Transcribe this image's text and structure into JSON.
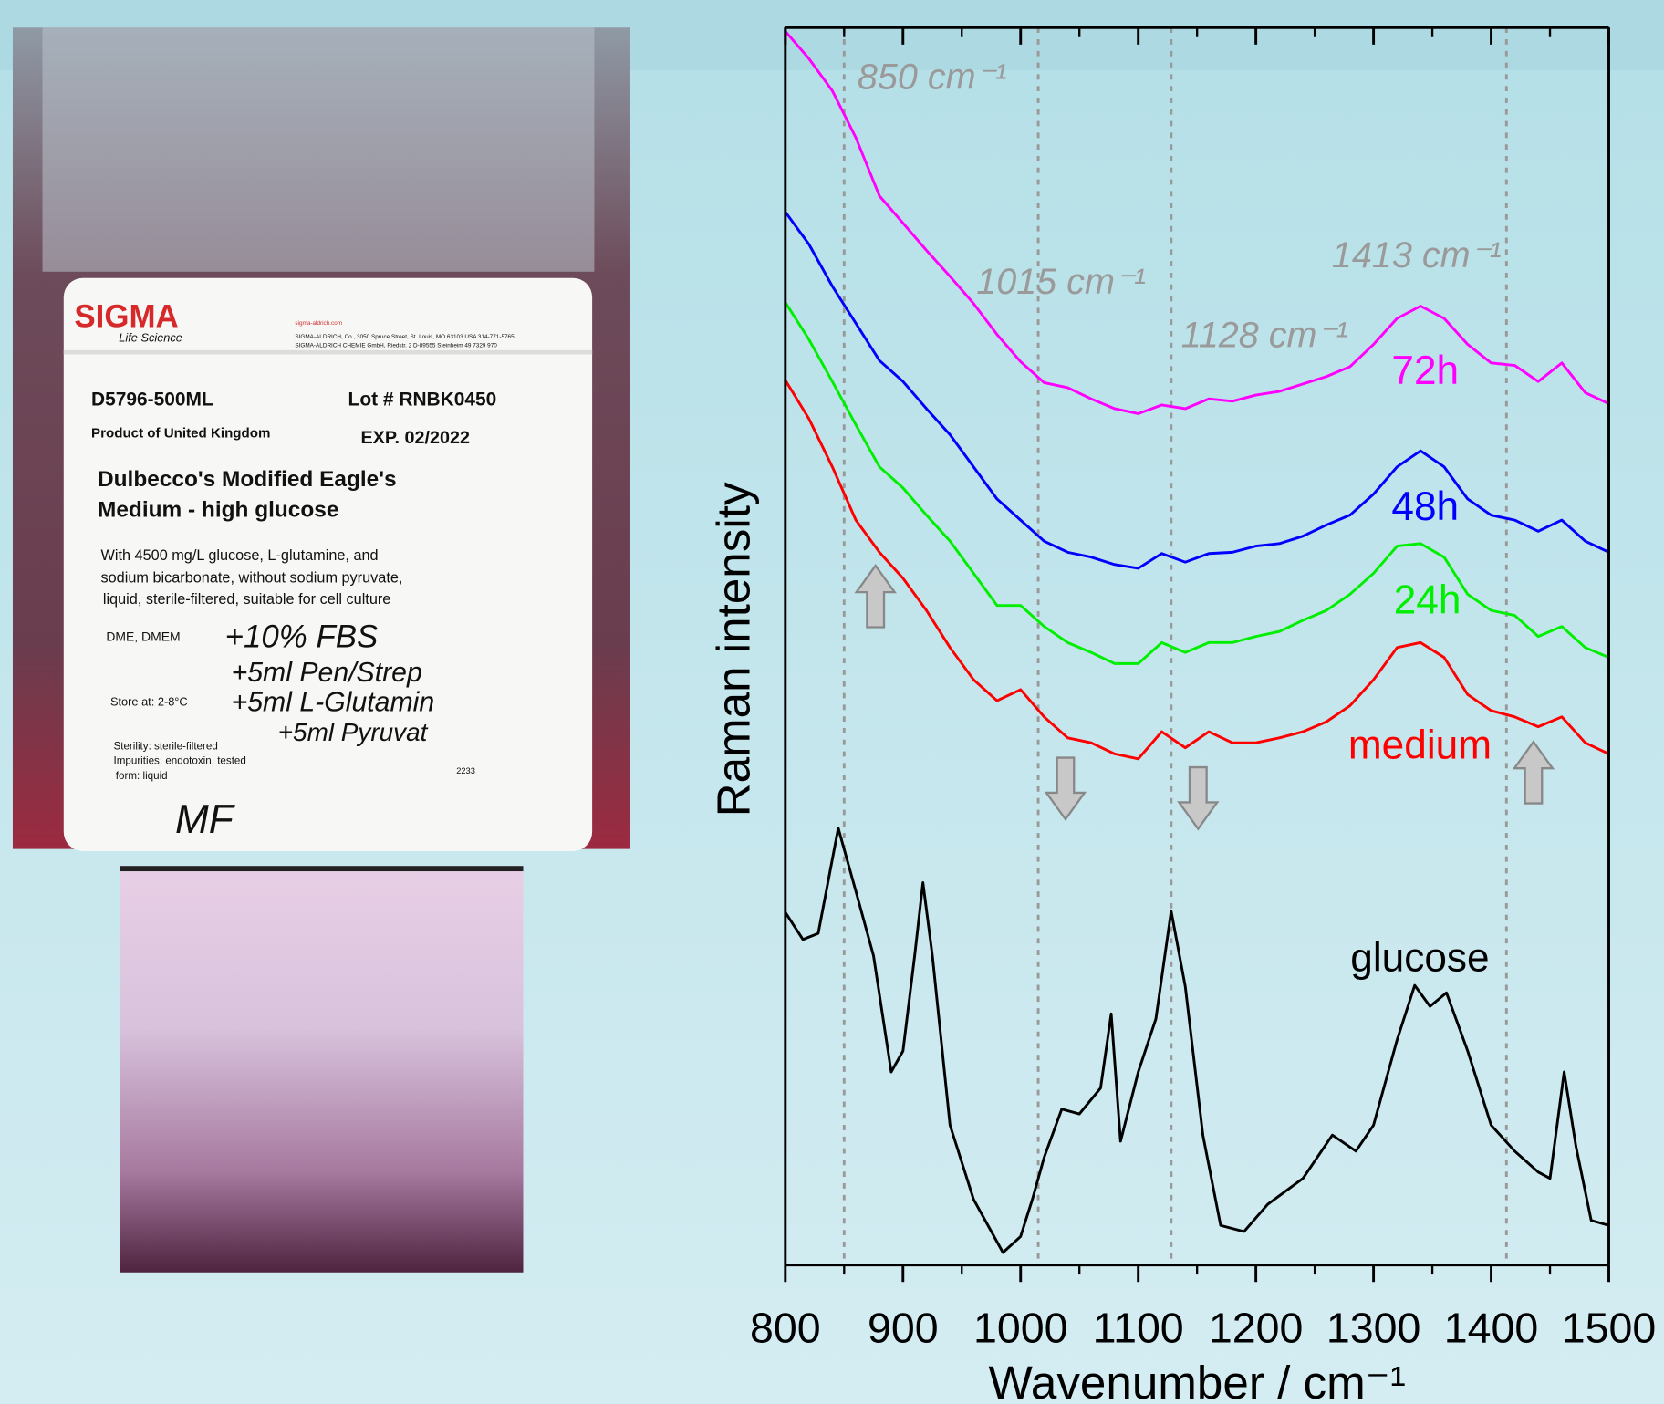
{
  "chart_data": {
    "type": "line",
    "xlabel": "Wavenumber / cm⁻¹",
    "ylabel": "Raman intensity",
    "xlim": [
      800,
      1500
    ],
    "xticks": [
      800,
      900,
      1000,
      1100,
      1200,
      1300,
      1400,
      1500
    ],
    "ylim": [
      0,
      100
    ],
    "x": [
      800,
      820,
      840,
      860,
      880,
      900,
      920,
      940,
      960,
      980,
      1000,
      1020,
      1040,
      1060,
      1080,
      1100,
      1120,
      1140,
      1160,
      1180,
      1200,
      1220,
      1240,
      1260,
      1280,
      1300,
      1320,
      1340,
      1360,
      1380,
      1400,
      1420,
      1440,
      1460,
      1480,
      1500
    ],
    "series": [
      {
        "name": "72h",
        "color": "#ff00ff",
        "values": [
          99.7,
          97.5,
          94.9,
          91.1,
          86.4,
          84.2,
          82.0,
          79.9,
          77.7,
          75.2,
          73.0,
          71.3,
          70.9,
          70.0,
          69.2,
          68.8,
          69.5,
          69.2,
          70.0,
          69.8,
          70.3,
          70.6,
          71.2,
          71.8,
          72.6,
          74.4,
          76.5,
          77.5,
          76.5,
          74.4,
          72.9,
          72.7,
          71.4,
          72.9,
          70.5,
          69.6
        ]
      },
      {
        "name": "48h",
        "color": "#0000ff",
        "values": [
          85.1,
          82.5,
          79.1,
          76.1,
          73.1,
          71.4,
          69.2,
          67.1,
          64.5,
          61.9,
          60.2,
          58.5,
          57.6,
          57.2,
          56.6,
          56.3,
          57.5,
          56.8,
          57.5,
          57.6,
          58.1,
          58.3,
          58.9,
          59.8,
          60.6,
          62.3,
          64.5,
          65.8,
          64.5,
          61.9,
          60.6,
          60.2,
          59.3,
          60.2,
          58.5,
          57.6
        ]
      },
      {
        "name": "24h",
        "color": "#00ee00",
        "values": [
          77.8,
          74.8,
          71.4,
          67.9,
          64.5,
          62.8,
          60.6,
          58.5,
          55.9,
          53.3,
          53.3,
          51.6,
          50.3,
          49.5,
          48.6,
          48.6,
          50.3,
          49.5,
          50.3,
          50.3,
          50.8,
          51.2,
          52.1,
          52.9,
          54.2,
          55.9,
          58.1,
          58.3,
          57.2,
          54.2,
          52.9,
          52.5,
          50.8,
          51.6,
          49.9,
          49.1
        ]
      },
      {
        "name": "medium",
        "color": "#ff0000",
        "values": [
          71.5,
          68.4,
          64.5,
          60.2,
          57.6,
          55.5,
          52.9,
          49.9,
          47.3,
          45.6,
          46.5,
          44.3,
          42.6,
          42.2,
          41.3,
          40.9,
          43.1,
          41.8,
          43.1,
          42.2,
          42.2,
          42.6,
          43.1,
          43.9,
          45.2,
          47.3,
          49.9,
          50.3,
          49.1,
          46.1,
          44.8,
          44.3,
          43.5,
          44.3,
          42.2,
          41.3
        ]
      },
      {
        "name": "glucose",
        "color": "#000000",
        "x": [
          800,
          815,
          828,
          845,
          860,
          875,
          890,
          900,
          910,
          917,
          925,
          940,
          960,
          985,
          1000,
          1010,
          1020,
          1035,
          1050,
          1068,
          1077,
          1085,
          1100,
          1115,
          1128,
          1140,
          1155,
          1170,
          1190,
          1210,
          1240,
          1265,
          1285,
          1300,
          1320,
          1335,
          1348,
          1362,
          1380,
          1400,
          1420,
          1440,
          1450,
          1462,
          1472,
          1485,
          1500
        ],
        "values": [
          28.5,
          26.3,
          26.8,
          35.3,
          30.2,
          25.0,
          15.6,
          17.3,
          25.0,
          30.9,
          25.0,
          11.3,
          5.3,
          1.0,
          2.3,
          5.3,
          8.7,
          12.6,
          12.2,
          14.3,
          20.3,
          10.0,
          15.6,
          19.9,
          28.6,
          22.5,
          10.5,
          3.2,
          2.7,
          4.9,
          7.0,
          10.5,
          9.2,
          11.3,
          18.2,
          22.6,
          20.9,
          22.0,
          17.3,
          11.3,
          9.2,
          7.5,
          7.0,
          15.6,
          9.6,
          3.6,
          3.2
        ]
      }
    ],
    "reference_lines": [
      {
        "value": 850,
        "label": "850 cm⁻¹"
      },
      {
        "value": 1015,
        "label": "1015 cm⁻¹"
      },
      {
        "value": 1128,
        "label": "1128 cm⁻¹"
      },
      {
        "value": 1413,
        "label": "1413 cm⁻¹"
      }
    ]
  },
  "photo_label": {
    "brand": "SIGMA",
    "subbrand": "Life Science",
    "address": [
      "sigma-aldrich.com",
      "SIGMA-ALDRICH, Co., 3050 Spruce Street, St. Louis, MO 63103 USA 314-771-5765",
      "SIGMA-ALDRICH CHEMIE GmbH, Riedstr. 2 D-89555 Steinheim 49 7329 970"
    ],
    "product": "D5796-500ML",
    "lot": "Lot # RNBK0450",
    "origin": "Product of United Kingdom",
    "exp": "EXP. 02/2022",
    "name": [
      "Dulbecco's Modified Eagle's",
      "Medium - high glucose"
    ],
    "description": [
      "With 4500 mg/L glucose, L-glutamine, and",
      "sodium bicarbonate, without sodium pyruvate,",
      "liquid, sterile-filtered, suitable for cell culture"
    ],
    "synonyms": "DME, DMEM",
    "store": "Store at: 2-8°C",
    "sterility": [
      "Sterility: sterile-filtered",
      "Impurities: endotoxin, tested",
      "form: liquid"
    ],
    "code": "2233",
    "handwriting": [
      "+10% FBS",
      "+5ml Pen/Strep",
      "+5ml L-Glutamin",
      "+5ml Pyruvat",
      "MF"
    ]
  }
}
